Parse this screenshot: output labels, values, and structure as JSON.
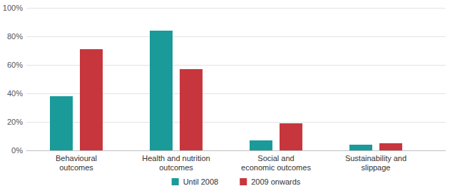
{
  "chart_data": {
    "type": "bar",
    "categories": [
      "Behavioural\noutcomes",
      "Health and nutrition\noutcomes",
      "Social and\neconomic outcomes",
      "Sustainability and\nslippage"
    ],
    "series": [
      {
        "name": "Until 2008",
        "color": "#1b9a9a",
        "values": [
          38,
          84,
          7,
          4
        ]
      },
      {
        "name": "2009 onwards",
        "color": "#c8363d",
        "values": [
          71,
          57,
          19,
          5
        ]
      }
    ],
    "ylim": [
      0,
      100
    ],
    "yticks": [
      {
        "value": 0,
        "label": "0%"
      },
      {
        "value": 20,
        "label": "20%"
      },
      {
        "value": 40,
        "label": "40%"
      },
      {
        "value": 60,
        "label": "60%"
      },
      {
        "value": 80,
        "label": "80%"
      },
      {
        "value": 100,
        "label": "100%"
      }
    ],
    "grid": true,
    "legend": "bottom"
  }
}
